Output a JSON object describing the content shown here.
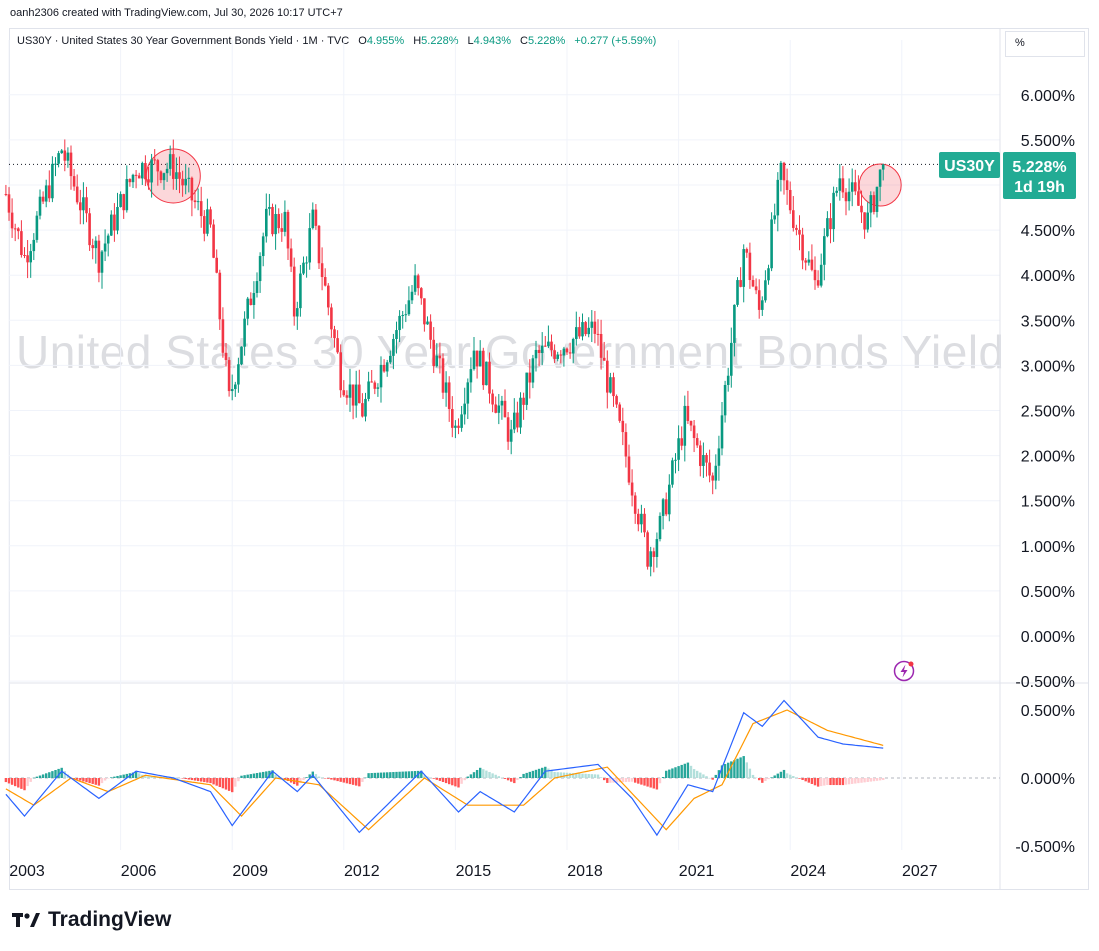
{
  "credit": "oanh2306 created with TradingView.com, Jul 30, 2026 10:17 UTC+7",
  "legend": {
    "title": "US30Y · United States 30 Year Government Bonds Yield · 1M · TVC",
    "o_label": "O",
    "o_value": "4.955%",
    "h_label": "H",
    "h_value": "5.228%",
    "l_label": "L",
    "l_value": "4.943%",
    "c_label": "C",
    "c_value": "5.228%",
    "change": "+0.277 (+5.59%)"
  },
  "scale_mode": "%",
  "watermark": "United States 30 Year Government Bonds Yield",
  "price_label": {
    "symbol": "US30Y",
    "value": "5.228%",
    "countdown": "1d 19h"
  },
  "brand": "TradingView",
  "colors": {
    "up": "#089981",
    "down": "#f23645",
    "macd": "#2962ff",
    "signal": "#ff9800",
    "label_bg": "#22ab94"
  },
  "chart_data": [
    {
      "type": "candlestick",
      "title": "United States 30 Year Government Bonds Yield",
      "interval": "1M",
      "y_tick_labels": [
        "6.000%",
        "5.500%",
        "5.000%",
        "4.500%",
        "4.000%",
        "3.500%",
        "3.000%",
        "2.500%",
        "2.000%",
        "1.500%",
        "1.000%",
        "0.500%",
        "0.000%",
        "-0.500%"
      ],
      "x_tick_labels": [
        "2003",
        "2006",
        "2009",
        "2012",
        "2015",
        "2018",
        "2021",
        "2024",
        "2027"
      ],
      "ylim": [
        -0.5,
        6.0
      ],
      "last_close": 5.228,
      "key_points": [
        {
          "date": "2002-12",
          "value": 4.9
        },
        {
          "date": "2003-06",
          "value": 4.2
        },
        {
          "date": "2004-06",
          "value": 5.4
        },
        {
          "date": "2005-06",
          "value": 4.2
        },
        {
          "date": "2006-06",
          "value": 5.2
        },
        {
          "date": "2007-06",
          "value": 5.2
        },
        {
          "date": "2008-06",
          "value": 4.5
        },
        {
          "date": "2008-12",
          "value": 2.6
        },
        {
          "date": "2009-12",
          "value": 4.6
        },
        {
          "date": "2010-06",
          "value": 4.6
        },
        {
          "date": "2010-09",
          "value": 3.6
        },
        {
          "date": "2011-03",
          "value": 4.6
        },
        {
          "date": "2011-12",
          "value": 2.9
        },
        {
          "date": "2012-07",
          "value": 2.5
        },
        {
          "date": "2013-12",
          "value": 3.9
        },
        {
          "date": "2015-01",
          "value": 2.3
        },
        {
          "date": "2015-07",
          "value": 3.2
        },
        {
          "date": "2016-07",
          "value": 2.2
        },
        {
          "date": "2017-03",
          "value": 3.1
        },
        {
          "date": "2018-10",
          "value": 3.4
        },
        {
          "date": "2019-08",
          "value": 2.0
        },
        {
          "date": "2020-03",
          "value": 0.9
        },
        {
          "date": "2020-07",
          "value": 1.2
        },
        {
          "date": "2021-03",
          "value": 2.4
        },
        {
          "date": "2021-12",
          "value": 1.7
        },
        {
          "date": "2022-10",
          "value": 4.3
        },
        {
          "date": "2023-03",
          "value": 3.6
        },
        {
          "date": "2023-10",
          "value": 5.1
        },
        {
          "date": "2024-09",
          "value": 3.9
        },
        {
          "date": "2025-05",
          "value": 5.1
        },
        {
          "date": "2026-02",
          "value": 4.6
        },
        {
          "date": "2026-07",
          "value": 5.228
        }
      ]
    },
    {
      "type": "macd",
      "y_tick_labels": [
        "0.500%",
        "0.000%",
        "-0.500%"
      ],
      "ylim": [
        -0.5,
        0.5
      ],
      "macd_key_points": [
        {
          "date": "2002-12",
          "value": -0.12
        },
        {
          "date": "2003-06",
          "value": -0.28
        },
        {
          "date": "2004-06",
          "value": 0.05
        },
        {
          "date": "2005-06",
          "value": -0.15
        },
        {
          "date": "2006-06",
          "value": 0.05
        },
        {
          "date": "2007-06",
          "value": 0.0
        },
        {
          "date": "2008-06",
          "value": -0.1
        },
        {
          "date": "2009-01",
          "value": -0.35
        },
        {
          "date": "2010-02",
          "value": 0.05
        },
        {
          "date": "2010-10",
          "value": -0.1
        },
        {
          "date": "2011-03",
          "value": 0.02
        },
        {
          "date": "2012-06",
          "value": -0.4
        },
        {
          "date": "2014-02",
          "value": 0.05
        },
        {
          "date": "2015-02",
          "value": -0.25
        },
        {
          "date": "2015-09",
          "value": -0.1
        },
        {
          "date": "2016-08",
          "value": -0.25
        },
        {
          "date": "2017-06",
          "value": 0.05
        },
        {
          "date": "2018-11",
          "value": 0.1
        },
        {
          "date": "2019-10",
          "value": -0.15
        },
        {
          "date": "2020-06",
          "value": -0.42
        },
        {
          "date": "2021-04",
          "value": -0.05
        },
        {
          "date": "2021-12",
          "value": -0.1
        },
        {
          "date": "2022-10",
          "value": 0.48
        },
        {
          "date": "2023-04",
          "value": 0.38
        },
        {
          "date": "2023-11",
          "value": 0.57
        },
        {
          "date": "2024-10",
          "value": 0.3
        },
        {
          "date": "2025-06",
          "value": 0.25
        },
        {
          "date": "2026-07",
          "value": 0.22
        }
      ],
      "signal_key_points": [
        {
          "date": "2002-12",
          "value": -0.08
        },
        {
          "date": "2003-09",
          "value": -0.2
        },
        {
          "date": "2004-09",
          "value": 0.0
        },
        {
          "date": "2005-09",
          "value": -0.1
        },
        {
          "date": "2006-09",
          "value": 0.02
        },
        {
          "date": "2008-06",
          "value": -0.05
        },
        {
          "date": "2009-04",
          "value": -0.28
        },
        {
          "date": "2010-03",
          "value": 0.0
        },
        {
          "date": "2011-05",
          "value": -0.05
        },
        {
          "date": "2012-09",
          "value": -0.38
        },
        {
          "date": "2014-03",
          "value": 0.0
        },
        {
          "date": "2015-05",
          "value": -0.2
        },
        {
          "date": "2016-11",
          "value": -0.2
        },
        {
          "date": "2017-09",
          "value": 0.0
        },
        {
          "date": "2019-02",
          "value": 0.08
        },
        {
          "date": "2020-09",
          "value": -0.38
        },
        {
          "date": "2021-06",
          "value": -0.15
        },
        {
          "date": "2022-03",
          "value": -0.05
        },
        {
          "date": "2023-01",
          "value": 0.4
        },
        {
          "date": "2023-12",
          "value": 0.5
        },
        {
          "date": "2025-01",
          "value": 0.35
        },
        {
          "date": "2026-07",
          "value": 0.24
        }
      ]
    }
  ]
}
